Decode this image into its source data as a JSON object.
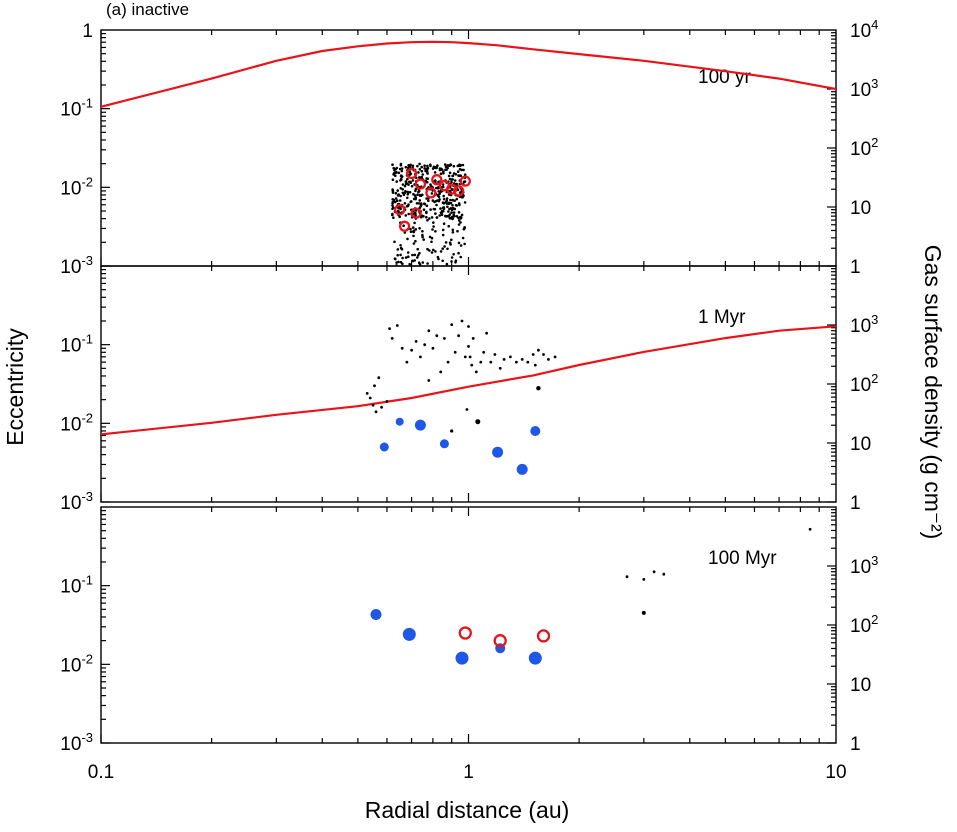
{
  "figure_label": "(a) inactive",
  "colors": {
    "gas": "#e8141a",
    "embryo": "#1f57e6",
    "planetesimal": "#000000",
    "open_circle": "#e8141a"
  },
  "chart_data": {
    "type": "scatter",
    "title": "(a) inactive",
    "xlabel": "Radial distance (au)",
    "ylabel": "Eccentricity",
    "y2label": "Gas surface density (g cm⁻²)",
    "xlim": [
      0.1,
      10
    ],
    "ylim": [
      0.001,
      1
    ],
    "y2lim": [
      1,
      10000
    ],
    "x_ticks": [
      {
        "value": 0.1,
        "label": "0.1"
      },
      {
        "value": 1,
        "label": "1"
      },
      {
        "value": 10,
        "label": "10"
      }
    ],
    "y_ticks": [
      {
        "value": 1,
        "base": "1",
        "exp": ""
      },
      {
        "value": 0.1,
        "base": "10",
        "exp": "-1"
      },
      {
        "value": 0.01,
        "base": "10",
        "exp": "-2"
      },
      {
        "value": 0.001,
        "base": "10",
        "exp": "-3"
      }
    ],
    "y2_ticks": [
      {
        "value": 10000,
        "base": "10",
        "exp": "4"
      },
      {
        "value": 1000,
        "base": "10",
        "exp": "3"
      },
      {
        "value": 100,
        "base": "10",
        "exp": "2"
      },
      {
        "value": 10,
        "base": "10",
        "exp": ""
      },
      {
        "value": 1,
        "base": "1",
        "exp": ""
      }
    ],
    "panels": [
      {
        "label": "100 yr",
        "y_ticks_shown": [
          "1",
          "-1",
          "-2",
          "-3"
        ],
        "y2_ticks_shown": [
          10000,
          1000,
          100,
          10,
          1
        ],
        "gas_surface_density": {
          "x": [
            0.1,
            0.2,
            0.3,
            0.4,
            0.5,
            0.6,
            0.7,
            0.8,
            0.9,
            1.0,
            1.2,
            1.5,
            2.0,
            3.0,
            5.0,
            7.0,
            10.0
          ],
          "y": [
            500,
            1500,
            3000,
            4400,
            5300,
            5900,
            6200,
            6300,
            6200,
            6000,
            5500,
            4700,
            3900,
            3000,
            2000,
            1500,
            1000
          ]
        },
        "planetesimal_cloud": {
          "x_range": [
            0.62,
            0.98
          ],
          "e_range": [
            0.001,
            0.02
          ],
          "count": 520,
          "core_e_range": [
            0.004,
            0.02
          ]
        },
        "open_circles": [
          {
            "x": 0.65,
            "e": 0.0052
          },
          {
            "x": 0.67,
            "e": 0.0032
          },
          {
            "x": 0.7,
            "e": 0.015
          },
          {
            "x": 0.72,
            "e": 0.0047
          },
          {
            "x": 0.74,
            "e": 0.011
          },
          {
            "x": 0.79,
            "e": 0.0085
          },
          {
            "x": 0.82,
            "e": 0.0125
          },
          {
            "x": 0.86,
            "e": 0.0105
          },
          {
            "x": 0.9,
            "e": 0.0095
          },
          {
            "x": 0.94,
            "e": 0.009
          },
          {
            "x": 0.98,
            "e": 0.012
          }
        ],
        "embryos": [],
        "small_dots": []
      },
      {
        "label": "1 Myr",
        "y_ticks_shown": [
          "-1",
          "-2",
          "-3"
        ],
        "y2_ticks_shown": [
          1000,
          100,
          10,
          1
        ],
        "gas_surface_density": {
          "x": [
            0.1,
            0.2,
            0.3,
            0.5,
            0.7,
            1.0,
            1.5,
            2.0,
            3.0,
            5.0,
            7.0,
            10.0
          ],
          "y": [
            14,
            22,
            30,
            42,
            58,
            90,
            140,
            210,
            350,
            600,
            800,
            950
          ]
        },
        "planetesimal_cloud": null,
        "open_circles": [],
        "embryos": [
          {
            "x": 0.59,
            "e": 0.005,
            "s": 4.5
          },
          {
            "x": 0.65,
            "e": 0.0105,
            "s": 4.0
          },
          {
            "x": 0.74,
            "e": 0.0095,
            "s": 5.5
          },
          {
            "x": 0.86,
            "e": 0.0055,
            "s": 4.5
          },
          {
            "x": 1.2,
            "e": 0.0043,
            "s": 5.5
          },
          {
            "x": 1.4,
            "e": 0.0026,
            "s": 5.5
          },
          {
            "x": 1.52,
            "e": 0.008,
            "s": 5.0
          }
        ],
        "small_dots": [
          {
            "x": 0.53,
            "e": 0.024
          },
          {
            "x": 0.54,
            "e": 0.021
          },
          {
            "x": 0.55,
            "e": 0.017
          },
          {
            "x": 0.555,
            "e": 0.03
          },
          {
            "x": 0.56,
            "e": 0.014
          },
          {
            "x": 0.57,
            "e": 0.038
          },
          {
            "x": 0.58,
            "e": 0.016
          },
          {
            "x": 0.6,
            "e": 0.019
          },
          {
            "x": 0.61,
            "e": 0.16
          },
          {
            "x": 0.62,
            "e": 0.12
          },
          {
            "x": 0.64,
            "e": 0.175
          },
          {
            "x": 0.66,
            "e": 0.09
          },
          {
            "x": 0.68,
            "e": 0.06
          },
          {
            "x": 0.7,
            "e": 0.085
          },
          {
            "x": 0.72,
            "e": 0.11
          },
          {
            "x": 0.74,
            "e": 0.07
          },
          {
            "x": 0.76,
            "e": 0.1
          },
          {
            "x": 0.78,
            "e": 0.15
          },
          {
            "x": 0.8,
            "e": 0.09
          },
          {
            "x": 0.82,
            "e": 0.13
          },
          {
            "x": 0.84,
            "e": 0.045
          },
          {
            "x": 0.86,
            "e": 0.12
          },
          {
            "x": 0.88,
            "e": 0.06
          },
          {
            "x": 0.9,
            "e": 0.18
          },
          {
            "x": 0.92,
            "e": 0.08
          },
          {
            "x": 0.94,
            "e": 0.13
          },
          {
            "x": 0.96,
            "e": 0.2
          },
          {
            "x": 0.98,
            "e": 0.07
          },
          {
            "x": 1.0,
            "e": 0.17
          },
          {
            "x": 1.0,
            "e": 0.095
          },
          {
            "x": 1.01,
            "e": 0.07
          },
          {
            "x": 1.02,
            "e": 0.055
          },
          {
            "x": 1.03,
            "e": 0.12
          },
          {
            "x": 1.05,
            "e": 0.045
          },
          {
            "x": 1.08,
            "e": 0.06
          },
          {
            "x": 1.1,
            "e": 0.08
          },
          {
            "x": 1.12,
            "e": 0.14
          },
          {
            "x": 1.15,
            "e": 0.06
          },
          {
            "x": 1.18,
            "e": 0.075
          },
          {
            "x": 1.22,
            "e": 0.05
          },
          {
            "x": 1.25,
            "e": 0.065
          },
          {
            "x": 1.3,
            "e": 0.07
          },
          {
            "x": 1.35,
            "e": 0.06
          },
          {
            "x": 1.4,
            "e": 0.065
          },
          {
            "x": 1.45,
            "e": 0.06
          },
          {
            "x": 1.5,
            "e": 0.075
          },
          {
            "x": 1.52,
            "e": 0.055
          },
          {
            "x": 1.55,
            "e": 0.085
          },
          {
            "x": 1.6,
            "e": 0.075
          },
          {
            "x": 1.65,
            "e": 0.065
          },
          {
            "x": 1.72,
            "e": 0.07
          },
          {
            "x": 0.9,
            "e": 0.008,
            "s": 1.6
          },
          {
            "x": 0.99,
            "e": 0.015
          },
          {
            "x": 0.78,
            "e": 0.035
          },
          {
            "x": 1.06,
            "e": 0.0105,
            "s": 2.5
          },
          {
            "x": 1.55,
            "e": 0.028,
            "s": 2.2
          }
        ]
      },
      {
        "label": "100 Myr",
        "y_ticks_shown": [
          "-1",
          "-2",
          "-3"
        ],
        "y2_ticks_shown": [
          1000,
          100,
          10,
          1
        ],
        "gas_surface_density": null,
        "planetesimal_cloud": null,
        "open_circles": [
          {
            "x": 0.98,
            "e": 0.025
          },
          {
            "x": 1.22,
            "e": 0.02
          },
          {
            "x": 1.6,
            "e": 0.023
          }
        ],
        "embryos": [
          {
            "x": 0.56,
            "e": 0.043,
            "s": 5.5
          },
          {
            "x": 0.69,
            "e": 0.024,
            "s": 6.5
          },
          {
            "x": 0.96,
            "e": 0.012,
            "s": 6.5
          },
          {
            "x": 1.22,
            "e": 0.016,
            "s": 5.0
          },
          {
            "x": 1.52,
            "e": 0.012,
            "s": 6.5
          }
        ],
        "small_dots": [
          {
            "x": 2.7,
            "e": 0.13
          },
          {
            "x": 3.0,
            "e": 0.12
          },
          {
            "x": 3.2,
            "e": 0.15
          },
          {
            "x": 3.4,
            "e": 0.14
          },
          {
            "x": 3.0,
            "e": 0.045,
            "s": 2.0
          },
          {
            "x": 8.5,
            "e": 0.52
          }
        ]
      }
    ]
  }
}
